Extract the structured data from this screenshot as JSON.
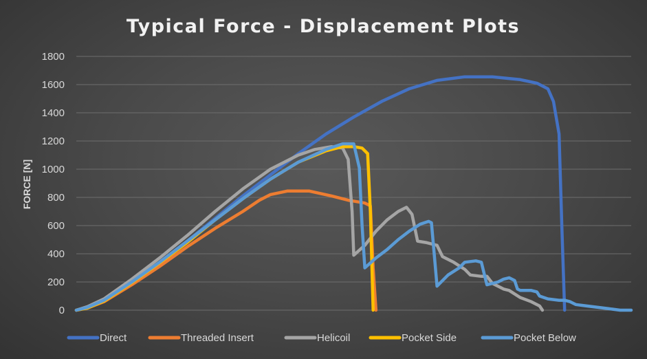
{
  "chart_data": {
    "type": "line",
    "title": "Typical Force - Displacement Plots",
    "xlabel": "",
    "ylabel": "FORCE [N]",
    "ylim": [
      0,
      1800
    ],
    "yticks": [
      0,
      200,
      400,
      600,
      800,
      1000,
      1200,
      1400,
      1600,
      1800
    ],
    "xlim": [
      0,
      100
    ],
    "grid": true,
    "legend_position": "bottom",
    "series": [
      {
        "name": "Direct",
        "color": "#4472C4",
        "points": [
          [
            0,
            0
          ],
          [
            2,
            20
          ],
          [
            5,
            70
          ],
          [
            10,
            200
          ],
          [
            15,
            340
          ],
          [
            20,
            490
          ],
          [
            25,
            650
          ],
          [
            30,
            810
          ],
          [
            35,
            960
          ],
          [
            40,
            1110
          ],
          [
            45,
            1250
          ],
          [
            50,
            1370
          ],
          [
            55,
            1480
          ],
          [
            60,
            1570
          ],
          [
            65,
            1630
          ],
          [
            70,
            1655
          ],
          [
            75,
            1655
          ],
          [
            80,
            1635
          ],
          [
            83,
            1610
          ],
          [
            85,
            1570
          ],
          [
            86,
            1480
          ],
          [
            87,
            1250
          ],
          [
            87.5,
            600
          ],
          [
            88,
            0
          ]
        ]
      },
      {
        "name": "Threaded Insert",
        "color": "#ED7D31",
        "points": [
          [
            0,
            0
          ],
          [
            2,
            15
          ],
          [
            5,
            60
          ],
          [
            10,
            180
          ],
          [
            15,
            310
          ],
          [
            20,
            450
          ],
          [
            25,
            580
          ],
          [
            30,
            700
          ],
          [
            33,
            780
          ],
          [
            35,
            820
          ],
          [
            38,
            845
          ],
          [
            42,
            845
          ],
          [
            46,
            810
          ],
          [
            49,
            780
          ],
          [
            52,
            760
          ],
          [
            53,
            740
          ],
          [
            53.5,
            300
          ],
          [
            54,
            0
          ]
        ]
      },
      {
        "name": "Helicoil",
        "color": "#A5A5A5",
        "points": [
          [
            0,
            0
          ],
          [
            2,
            25
          ],
          [
            5,
            80
          ],
          [
            10,
            220
          ],
          [
            15,
            370
          ],
          [
            20,
            530
          ],
          [
            25,
            700
          ],
          [
            30,
            860
          ],
          [
            35,
            1000
          ],
          [
            40,
            1100
          ],
          [
            43,
            1140
          ],
          [
            46,
            1160
          ],
          [
            48,
            1150
          ],
          [
            49,
            1070
          ],
          [
            49.7,
            700
          ],
          [
            50,
            390
          ],
          [
            52,
            460
          ],
          [
            54,
            560
          ],
          [
            56,
            640
          ],
          [
            58,
            700
          ],
          [
            59.5,
            730
          ],
          [
            60.5,
            680
          ],
          [
            61.5,
            490
          ],
          [
            63,
            480
          ],
          [
            65,
            460
          ],
          [
            66,
            380
          ],
          [
            68,
            340
          ],
          [
            70,
            290
          ],
          [
            71,
            250
          ],
          [
            73,
            240
          ],
          [
            74,
            240
          ],
          [
            75,
            190
          ],
          [
            77,
            150
          ],
          [
            78,
            140
          ],
          [
            80,
            90
          ],
          [
            82,
            60
          ],
          [
            83.5,
            30
          ],
          [
            84,
            0
          ]
        ]
      },
      {
        "name": "Pocket Side",
        "color": "#FFC000",
        "points": [
          [
            0,
            0
          ],
          [
            2,
            15
          ],
          [
            5,
            65
          ],
          [
            10,
            195
          ],
          [
            15,
            335
          ],
          [
            20,
            480
          ],
          [
            25,
            640
          ],
          [
            30,
            790
          ],
          [
            35,
            930
          ],
          [
            40,
            1050
          ],
          [
            45,
            1130
          ],
          [
            48,
            1160
          ],
          [
            50,
            1160
          ],
          [
            51.5,
            1150
          ],
          [
            52.5,
            1110
          ],
          [
            53,
            700
          ],
          [
            53.5,
            0
          ]
        ]
      },
      {
        "name": "Pocket Below",
        "color": "#5B9BD5",
        "points": [
          [
            0,
            0
          ],
          [
            2,
            20
          ],
          [
            5,
            70
          ],
          [
            10,
            200
          ],
          [
            15,
            340
          ],
          [
            20,
            490
          ],
          [
            25,
            640
          ],
          [
            30,
            790
          ],
          [
            35,
            930
          ],
          [
            40,
            1050
          ],
          [
            45,
            1140
          ],
          [
            48,
            1180
          ],
          [
            50,
            1180
          ],
          [
            51,
            1010
          ],
          [
            51.5,
            600
          ],
          [
            52,
            300
          ],
          [
            54,
            370
          ],
          [
            56,
            430
          ],
          [
            58,
            500
          ],
          [
            60,
            560
          ],
          [
            62,
            610
          ],
          [
            63.5,
            630
          ],
          [
            64,
            620
          ],
          [
            64.5,
            400
          ],
          [
            65,
            170
          ],
          [
            67,
            250
          ],
          [
            69,
            300
          ],
          [
            70,
            340
          ],
          [
            72,
            350
          ],
          [
            73,
            340
          ],
          [
            73.5,
            260
          ],
          [
            74,
            180
          ],
          [
            76,
            200
          ],
          [
            77,
            220
          ],
          [
            78,
            230
          ],
          [
            79,
            210
          ],
          [
            79.5,
            150
          ],
          [
            80,
            140
          ],
          [
            82,
            140
          ],
          [
            83,
            130
          ],
          [
            83.5,
            100
          ],
          [
            85,
            80
          ],
          [
            87,
            70
          ],
          [
            88,
            70
          ],
          [
            89,
            60
          ],
          [
            90,
            40
          ],
          [
            92,
            30
          ],
          [
            94,
            20
          ],
          [
            96,
            10
          ],
          [
            98,
            0
          ],
          [
            100,
            0
          ]
        ]
      }
    ]
  }
}
